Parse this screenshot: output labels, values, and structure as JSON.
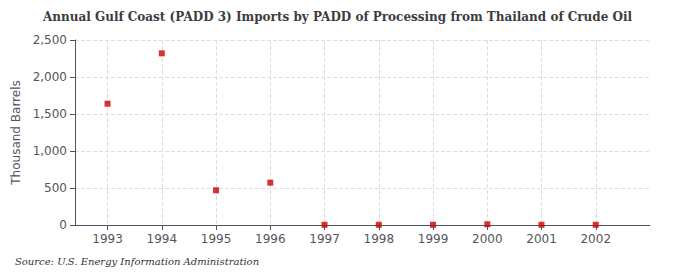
{
  "chart_data": {
    "type": "scatter",
    "title": "Annual Gulf Coast (PADD 3) Imports by PADD of Processing from Thailand of Crude Oil",
    "ylabel": "Thousand Barrels",
    "annotations": [
      "Source: U.S. Energy Information Administration"
    ],
    "x": [
      1993,
      1994,
      1995,
      1996,
      1997,
      1998,
      1999,
      2000,
      2001,
      2002
    ],
    "values": [
      1639,
      2320,
      469,
      572,
      3,
      3,
      3,
      10,
      3,
      3
    ],
    "color": "#cc0000",
    "marker": "square",
    "grid": true,
    "xlim": [
      1992.4,
      2003.0
    ],
    "xticks": [
      1993,
      1994,
      1995,
      1996,
      1997,
      1998,
      1999,
      2000,
      2001,
      2002
    ],
    "ylim": [
      0,
      2500
    ],
    "yticks": [
      0,
      500,
      {
        "value": 1000,
        "label": "1,000"
      },
      {
        "value": 1500,
        "label": "1,500"
      },
      {
        "value": 2000,
        "label": "2,000"
      },
      {
        "value": 2500,
        "label": "2,500"
      }
    ]
  }
}
